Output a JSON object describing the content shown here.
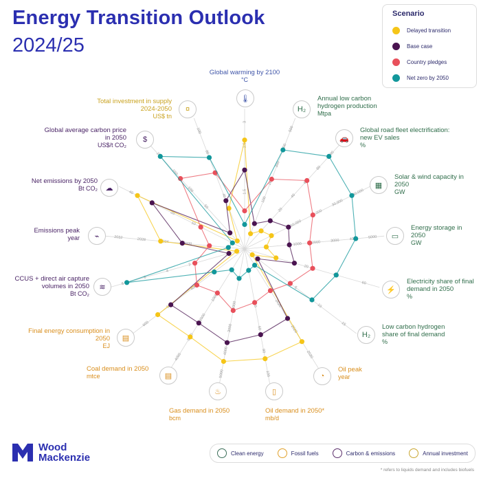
{
  "header": {
    "title_line1": "Energy Transition Outlook",
    "title_line2": "2024/25"
  },
  "legend": {
    "title": "Scenario",
    "items": [
      {
        "label": "Delayed transition",
        "color": "#f5c518"
      },
      {
        "label": "Base case",
        "color": "#4a1450"
      },
      {
        "label": "Country pledges",
        "color": "#e8505b"
      },
      {
        "label": "Net zero by 2050",
        "color": "#12979b"
      }
    ]
  },
  "bottom_legend": {
    "items": [
      {
        "label": "Clean energy",
        "color": "#3a6d58"
      },
      {
        "label": "Fossil fuels",
        "color": "#e0a02a"
      },
      {
        "label": "Carbon & emissions",
        "color": "#5a2d6a"
      },
      {
        "label": "Annual investment",
        "color": "#c9a630"
      }
    ]
  },
  "brand": {
    "line1": "Wood",
    "line2": "Mackenzie"
  },
  "footnote": "* refers to liquids demand and includes biofuels",
  "colors": {
    "clean": "#2f6d4a",
    "fossil": "#d98e1c",
    "carbon": "#4a2466",
    "invest": "#c9a21f",
    "warming": "#3f55a8"
  },
  "chart_data": {
    "type": "radar",
    "categories": [
      {
        "name": "Global warming by 2100",
        "unit": "°C",
        "group": "warming",
        "icon": "thermometer-icon"
      },
      {
        "name": "Annual low carbon hydrogen production",
        "unit": "Mtpa",
        "group": "clean",
        "icon": "hydrogen-icon"
      },
      {
        "name": "Global road fleet electrification: new EV sales",
        "unit": "%",
        "group": "clean",
        "icon": "ev-car-icon"
      },
      {
        "name": "Solar & wind capacity in 2050",
        "unit": "GW",
        "group": "clean",
        "icon": "solar-panel-icon"
      },
      {
        "name": "Energy storage in 2050",
        "unit": "GW",
        "group": "clean",
        "icon": "battery-icon"
      },
      {
        "name": "Electricity share of final demand in 2050",
        "unit": "%",
        "group": "clean",
        "icon": "pylon-icon"
      },
      {
        "name": "Low carbon hydrogen share of final demand",
        "unit": "%",
        "group": "clean",
        "icon": "h2-tank-icon"
      },
      {
        "name": "Oil peak",
        "unit": "year",
        "group": "fossil",
        "icon": "oil-drop-icon"
      },
      {
        "name": "Oil demand in 2050*",
        "unit": "mb/d",
        "group": "fossil",
        "icon": "oil-barrel-icon"
      },
      {
        "name": "Gas demand in 2050",
        "unit": "bcm",
        "group": "fossil",
        "icon": "gas-flame-icon"
      },
      {
        "name": "Coal demand in 2050",
        "unit": "mtce",
        "group": "fossil",
        "icon": "coal-cart-icon"
      },
      {
        "name": "Final energy consumption in 2050",
        "unit": "EJ",
        "group": "fossil",
        "icon": "document-icon"
      },
      {
        "name": "CCUS + direct air capture volumes in 2050",
        "unit": "Bt CO₂",
        "group": "carbon",
        "icon": "air-capture-icon"
      },
      {
        "name": "Emissions peak",
        "unit": "year",
        "group": "carbon",
        "icon": "emissions-chart-icon"
      },
      {
        "name": "Net emissions by 2050",
        "unit": "Bt CO₂",
        "group": "carbon",
        "icon": "emissions-icon"
      },
      {
        "name": "Global average carbon price in 2050",
        "unit": "US$/t CO₂",
        "group": "carbon",
        "icon": "price-tag-icon"
      },
      {
        "name": "Total investment in supply 2024-2050",
        "unit": "US$ tn",
        "group": "invest",
        "icon": "money-icon"
      }
    ],
    "series": [
      {
        "name": "Delayed transition",
        "color": "#f5c518",
        "values": [
          0.8,
          0.12,
          0.18,
          0.22,
          0.16,
          0.24,
          0.07,
          0.8,
          0.82,
          0.84,
          0.76,
          0.8,
          0.06,
          0.62,
          0.88,
          0.08,
          0.32
        ]
      },
      {
        "name": "Base case",
        "color": "#4a1450",
        "values": [
          0.58,
          0.2,
          0.28,
          0.36,
          0.33,
          0.38,
          0.12,
          0.6,
          0.64,
          0.7,
          0.64,
          0.68,
          0.12,
          0.46,
          0.76,
          0.16,
          0.38
        ]
      },
      {
        "name": "Country pledges",
        "color": "#e8505b",
        "values": [
          0.28,
          0.55,
          0.68,
          0.56,
          0.48,
          0.52,
          0.42,
          0.36,
          0.4,
          0.46,
          0.38,
          0.44,
          0.38,
          0.26,
          0.36,
          0.7,
          0.6
        ]
      },
      {
        "name": "Net zero by 2050",
        "color": "#12979b",
        "values": [
          0.18,
          0.78,
          0.92,
          0.88,
          0.82,
          0.7,
          0.62,
          0.14,
          0.16,
          0.22,
          0.18,
          0.28,
          0.9,
          0.12,
          0.1,
          0.92,
          0.72
        ]
      }
    ],
    "axis_ticks": [
      [
        "1.5",
        "2",
        "2.5",
        "3"
      ],
      [
        "100",
        "200",
        "300",
        "400",
        "500"
      ],
      [
        "20",
        "40",
        "60",
        "80",
        "100"
      ],
      [
        "10,000",
        "20,000",
        "30,000",
        "40,000"
      ],
      [
        "1000",
        "2000",
        "3000",
        "4000",
        "5000"
      ],
      [
        "20",
        "40",
        "60"
      ],
      [
        "5",
        "10",
        "15"
      ],
      [
        "2026",
        "2028",
        "2030"
      ],
      [
        "40",
        "60",
        "80",
        "100"
      ],
      [
        "2000",
        "3000",
        "4000",
        "5000"
      ],
      [
        "1000",
        "2000",
        "3000",
        "4000"
      ],
      [
        "400",
        "500",
        "600"
      ],
      [
        "2",
        "4",
        "6",
        "8"
      ],
      [
        "2020",
        "2024",
        "2028",
        "2032"
      ],
      [
        "10",
        "20",
        "30",
        "40"
      ],
      [
        "50",
        "100",
        "150",
        "200"
      ],
      [
        "40",
        "60",
        "80",
        "100"
      ]
    ]
  }
}
